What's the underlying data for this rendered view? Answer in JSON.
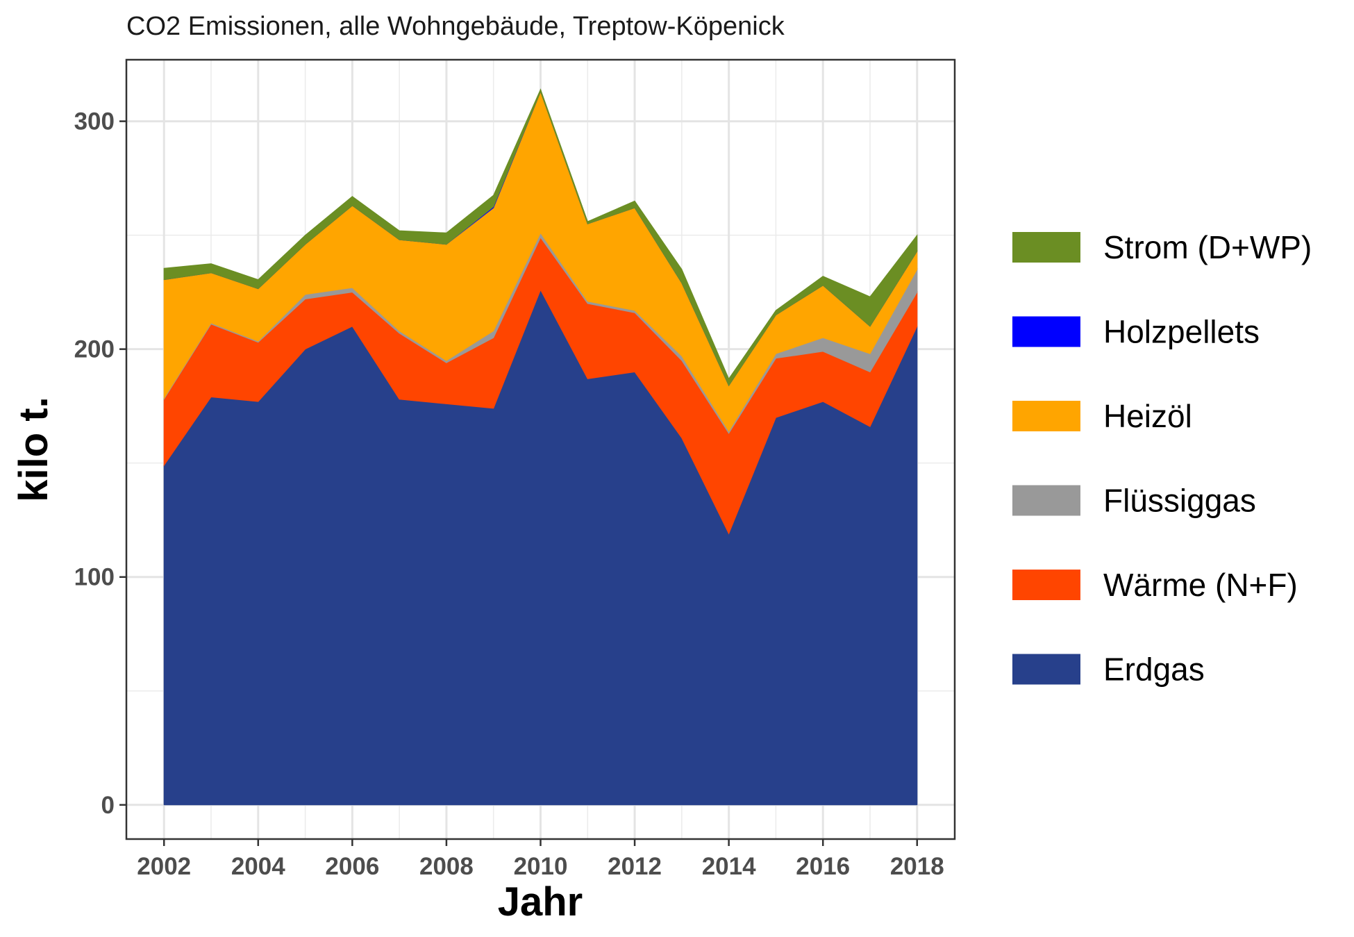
{
  "chart_data": {
    "type": "area",
    "stacked": true,
    "title": "CO2 Emissionen, alle Wohngebäude, Treptow-Köpenick",
    "xlabel": "Jahr",
    "ylabel": "kilo t.",
    "xlim": [
      2001.2,
      2018.8
    ],
    "ylim": [
      -15,
      327
    ],
    "x_ticks": [
      2002,
      2004,
      2006,
      2008,
      2010,
      2012,
      2014,
      2016,
      2018
    ],
    "y_ticks": [
      0,
      100,
      200,
      300
    ],
    "grid": true,
    "legend_position": "right",
    "x": [
      2002,
      2003,
      2004,
      2005,
      2006,
      2007,
      2008,
      2009,
      2010,
      2011,
      2012,
      2013,
      2014,
      2015,
      2016,
      2017,
      2018
    ],
    "series": [
      {
        "name": "Erdgas",
        "color": "#27408B",
        "values": [
          149,
          179,
          177,
          200,
          210,
          178,
          176,
          174,
          226,
          187,
          190,
          161,
          119,
          170,
          177,
          166,
          210
        ]
      },
      {
        "name": "Wärme (N+F)",
        "color": "#FF4500",
        "values": [
          29,
          32,
          26,
          22,
          15,
          29,
          18,
          31,
          23,
          33,
          26,
          34,
          44,
          26,
          22,
          24,
          15
        ]
      },
      {
        "name": "Flüssiggas",
        "color": "#999999",
        "values": [
          0.5,
          0.5,
          0.5,
          2,
          2,
          1,
          1,
          3,
          2,
          1,
          1,
          2,
          1,
          2,
          6,
          8,
          10
        ]
      },
      {
        "name": "Heizöl",
        "color": "#FFA500",
        "values": [
          52,
          22,
          23,
          22,
          36,
          40,
          51,
          54,
          62,
          34,
          45,
          32,
          20,
          17,
          23,
          12,
          8
        ]
      },
      {
        "name": "Holzpellets",
        "color": "#0000FF",
        "values": [
          0,
          0,
          0,
          0,
          0,
          0,
          0,
          0.5,
          0,
          0,
          0,
          0,
          0,
          0,
          0,
          0,
          0
        ]
      },
      {
        "name": "Strom (D+WP)",
        "color": "#6B8E23",
        "values": [
          5,
          4,
          4,
          4,
          4,
          4,
          5,
          5,
          1,
          1,
          3,
          6,
          3,
          2,
          4,
          13,
          7
        ]
      }
    ],
    "legend_order": [
      "Strom (D+WP)",
      "Holzpellets",
      "Heizöl",
      "Flüssiggas",
      "Wärme (N+F)",
      "Erdgas"
    ]
  }
}
